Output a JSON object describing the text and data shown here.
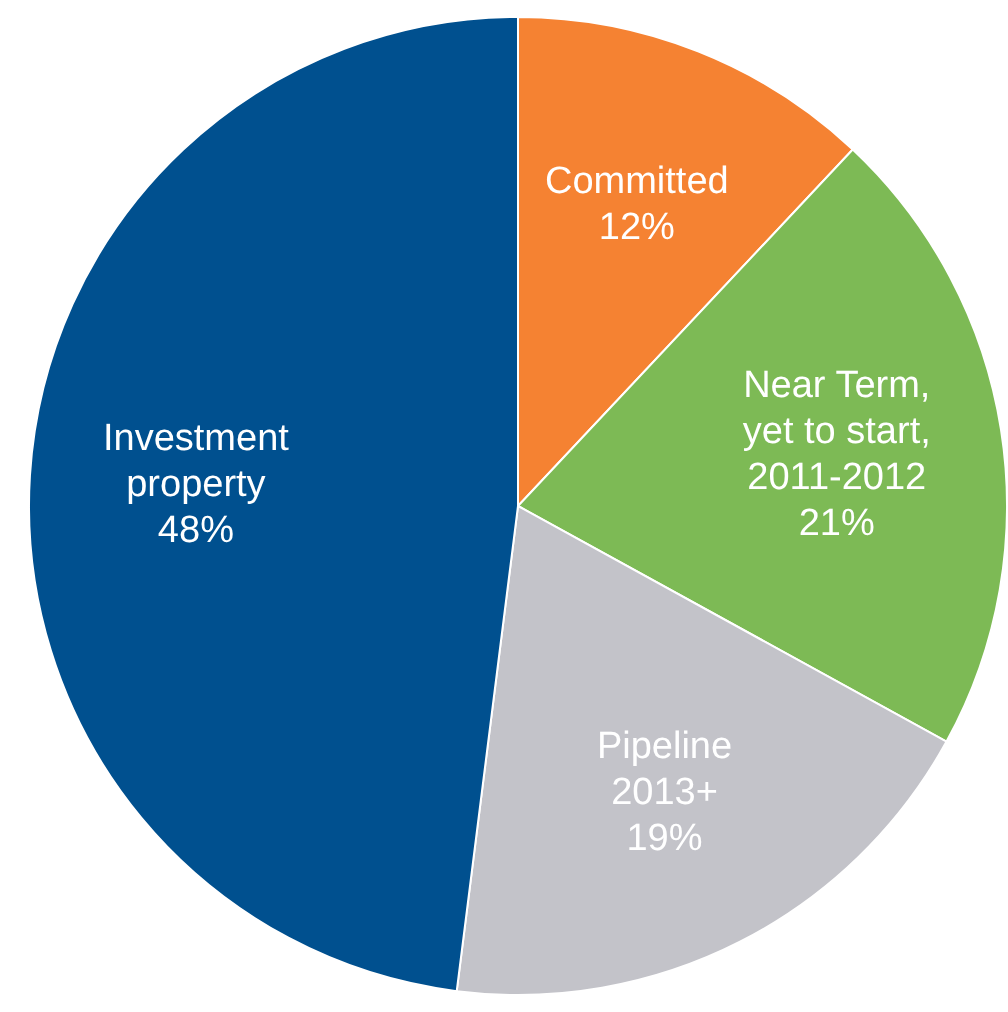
{
  "chart_data": {
    "type": "pie",
    "categories": [
      "Committed",
      "Near Term,\nyet to start,\n2011-2012",
      "Pipeline\n2013+",
      "Investment\nproperty"
    ],
    "values": [
      12,
      21,
      19,
      48
    ],
    "colors": [
      "#f58232",
      "#7dba55",
      "#c3c3c9",
      "#00508f"
    ],
    "value_labels": [
      "12%",
      "21%",
      "19%",
      "48%"
    ],
    "legend": false
  }
}
